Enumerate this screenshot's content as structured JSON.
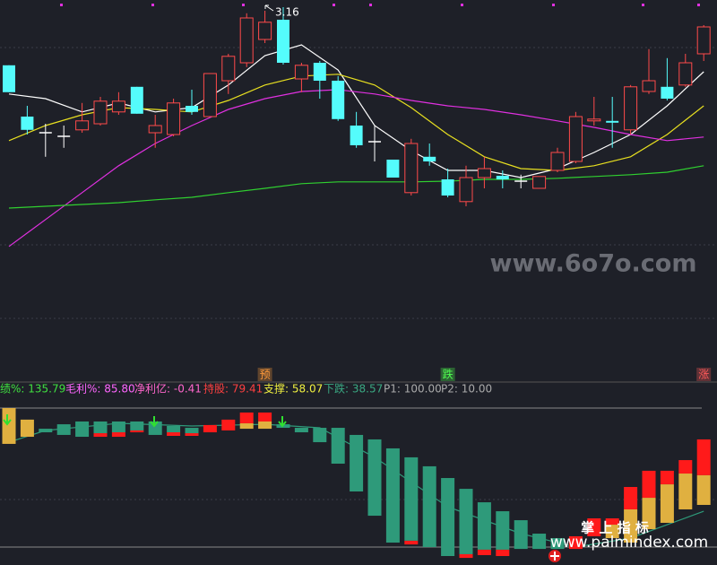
{
  "chart_data": [
    {
      "type": "candlestick",
      "ylim": [
        2.13,
        3.18
      ],
      "up_color": "#ff4a4a",
      "down_color": "#54fcfc",
      "flat_color": "#ffffff",
      "ohlc": [
        [
          2.998,
          2.998,
          2.923,
          2.923
        ],
        [
          2.855,
          2.885,
          2.805,
          2.818
        ],
        [
          2.81,
          2.835,
          2.743,
          2.81
        ],
        [
          2.8,
          2.83,
          2.768,
          2.8
        ],
        [
          2.818,
          2.893,
          2.81,
          2.843
        ],
        [
          2.835,
          2.91,
          2.83,
          2.898
        ],
        [
          2.868,
          2.923,
          2.86,
          2.898
        ],
        [
          2.938,
          2.938,
          2.863,
          2.863
        ],
        [
          2.81,
          2.86,
          2.768,
          2.83
        ],
        [
          2.805,
          2.905,
          2.8,
          2.893
        ],
        [
          2.885,
          2.93,
          2.86,
          2.868
        ],
        [
          2.855,
          2.975,
          2.855,
          2.975
        ],
        [
          2.955,
          3.03,
          2.918,
          3.023
        ],
        [
          3.005,
          3.143,
          2.993,
          3.13
        ],
        [
          3.07,
          3.15,
          3.06,
          3.118
        ],
        [
          3.125,
          3.16,
          3.0,
          3.005
        ],
        [
          2.96,
          3.005,
          2.923,
          2.998
        ],
        [
          3.005,
          3.01,
          2.905,
          2.955
        ],
        [
          2.955,
          2.968,
          2.843,
          2.848
        ],
        [
          2.83,
          2.868,
          2.768,
          2.775
        ],
        [
          2.785,
          2.83,
          2.73,
          2.785
        ],
        [
          2.735,
          2.735,
          2.685,
          2.685
        ],
        [
          2.643,
          2.793,
          2.635,
          2.78
        ],
        [
          2.743,
          2.78,
          2.718,
          2.73
        ],
        [
          2.68,
          2.71,
          2.63,
          2.635
        ],
        [
          2.618,
          2.718,
          2.605,
          2.685
        ],
        [
          2.685,
          2.743,
          2.655,
          2.71
        ],
        [
          2.69,
          2.705,
          2.655,
          2.68
        ],
        [
          2.675,
          2.693,
          2.655,
          2.675
        ],
        [
          2.655,
          2.688,
          2.655,
          2.688
        ],
        [
          2.705,
          2.768,
          2.7,
          2.755
        ],
        [
          2.73,
          2.868,
          2.725,
          2.855
        ],
        [
          2.843,
          2.91,
          2.83,
          2.848
        ],
        [
          2.843,
          2.91,
          2.768,
          2.838
        ],
        [
          2.818,
          2.943,
          2.805,
          2.938
        ],
        [
          2.925,
          3.043,
          2.918,
          2.955
        ],
        [
          2.938,
          3.018,
          2.9,
          2.905
        ],
        [
          2.943,
          3.03,
          2.938,
          3.005
        ],
        [
          3.03,
          3.11,
          3.01,
          3.105
        ]
      ],
      "lines": [
        {
          "color": "#ffffff",
          "x": [
            0,
            2,
            4,
            6,
            8,
            10,
            12,
            14,
            16,
            18,
            20,
            22,
            24,
            26,
            28,
            30,
            32,
            34,
            36,
            38
          ],
          "values": [
            2.918,
            2.905,
            2.868,
            2.893,
            2.868,
            2.88,
            2.943,
            3.025,
            3.055,
            2.985,
            2.83,
            2.76,
            2.705,
            2.705,
            2.685,
            2.71,
            2.755,
            2.805,
            2.885,
            2.98
          ]
        },
        {
          "color": "#e8e020",
          "x": [
            0,
            2,
            4,
            6,
            8,
            10,
            12,
            14,
            16,
            18,
            20,
            22,
            24,
            26,
            28,
            30,
            32,
            34,
            36,
            38
          ],
          "values": [
            2.788,
            2.83,
            2.86,
            2.88,
            2.875,
            2.868,
            2.9,
            2.943,
            2.968,
            2.973,
            2.943,
            2.88,
            2.805,
            2.743,
            2.71,
            2.705,
            2.718,
            2.743,
            2.805,
            2.885
          ]
        },
        {
          "color": "#e030e0",
          "x": [
            0,
            2,
            4,
            6,
            8,
            10,
            12,
            14,
            16,
            18,
            20,
            22,
            24,
            26,
            28,
            30,
            32,
            34,
            36,
            38
          ],
          "values": [
            2.493,
            2.568,
            2.643,
            2.718,
            2.78,
            2.83,
            2.875,
            2.905,
            2.925,
            2.93,
            2.918,
            2.9,
            2.885,
            2.875,
            2.86,
            2.843,
            2.825,
            2.805,
            2.788,
            2.798
          ]
        },
        {
          "color": "#30d030",
          "x": [
            0,
            2,
            4,
            6,
            8,
            10,
            12,
            14,
            16,
            18,
            20,
            22,
            24,
            26,
            28,
            30,
            32,
            34,
            36,
            38
          ],
          "values": [
            2.6,
            2.605,
            2.61,
            2.615,
            2.623,
            2.63,
            2.643,
            2.655,
            2.668,
            2.673,
            2.673,
            2.673,
            2.675,
            2.68,
            2.68,
            2.683,
            2.688,
            2.693,
            2.7,
            2.718
          ]
        }
      ],
      "annotation": "3.16",
      "signals": [
        {
          "text": "预",
          "index": 14,
          "color": "#ff9a3a"
        },
        {
          "text": "跌",
          "index": 24,
          "color": "#50ff50"
        },
        {
          "text": "涨",
          "index": 38,
          "color": "#ff5a5a"
        }
      ]
    },
    {
      "type": "bar",
      "ylim": [
        -1.6,
        108.7
      ],
      "legend": [
        {
          "text": "绩%: 135.79",
          "color": "#40e040"
        },
        {
          "text": "毛利%: 85.80",
          "color": "#ff66ff"
        },
        {
          "text": "净利亿: -0.41",
          "color": "#ff66cc"
        },
        {
          "text": "持股: 79.41",
          "color": "#ff4040"
        },
        {
          "text": "支撑: 58.07",
          "color": "#f0f040"
        },
        {
          "text": "下跌: 38.57",
          "color": "#3aa882"
        },
        {
          "text": "P1: 100.00",
          "color": "#aaaaaa"
        },
        {
          "text": "P2: 10.00",
          "color": "#aaaaaa"
        }
      ],
      "series": [
        {
          "color": "#2e9a7a",
          "high": [
            null,
            null,
            86.6,
            89.5,
            91.3,
            91.3,
            91.3,
            91.3,
            91.3,
            88.4,
            87.2,
            null,
            null,
            null,
            null,
            89.5,
            87.2,
            87.2,
            87.2,
            82.6,
            79.7,
            73.9,
            68.1,
            62.3,
            54.7,
            47.7,
            39.0,
            33.2,
            27.4,
            18.7,
            15.8,
            null,
            null,
            null,
            null,
            null,
            null,
            null,
            null
          ],
          "low": [
            null,
            null,
            84.3,
            82.6,
            81.4,
            83.7,
            84.3,
            85.5,
            82.6,
            84.3,
            83.7,
            null,
            null,
            null,
            null,
            87.2,
            84.3,
            77.9,
            64.0,
            46.0,
            30.3,
            12.9,
            14.1,
            10.0,
            4.2,
            5.4,
            8.3,
            8.3,
            8.8,
            8.8,
            8.8,
            null,
            null,
            null,
            null,
            null,
            null,
            null,
            null
          ]
        },
        {
          "color": "#ff1a1a",
          "high": [
            null,
            null,
            null,
            null,
            null,
            83.7,
            84.3,
            85.5,
            null,
            84.3,
            83.7,
            89.0,
            92.5,
            97.1,
            97.1,
            null,
            null,
            null,
            null,
            null,
            null,
            null,
            14.1,
            null,
            null,
            5.4,
            8.3,
            8.3,
            null,
            null,
            null,
            17.0,
            28.6,
            28.6,
            48.9,
            59.4,
            59.4,
            66.3,
            79.7
          ],
          "low": [
            null,
            null,
            null,
            null,
            null,
            81.4,
            81.4,
            84.3,
            null,
            82.0,
            82.0,
            84.3,
            85.5,
            90.1,
            91.3,
            null,
            null,
            null,
            null,
            null,
            null,
            null,
            11.7,
            null,
            null,
            3.0,
            4.8,
            4.2,
            null,
            null,
            null,
            8.8,
            17.0,
            24.5,
            34.4,
            41.9,
            50.6,
            57.6,
            56.5
          ]
        },
        {
          "color": "#e0b040",
          "high": [
            100,
            92.5,
            null,
            null,
            null,
            null,
            null,
            null,
            null,
            null,
            null,
            null,
            null,
            90.1,
            91.3,
            null,
            null,
            null,
            null,
            null,
            null,
            null,
            null,
            null,
            null,
            null,
            null,
            null,
            null,
            null,
            null,
            null,
            null,
            24.5,
            34.4,
            41.9,
            50.6,
            57.6,
            56.5
          ],
          "low": [
            76.8,
            81.4,
            null,
            null,
            null,
            null,
            null,
            null,
            null,
            null,
            null,
            null,
            null,
            86.6,
            86.6,
            null,
            null,
            null,
            null,
            null,
            null,
            null,
            null,
            null,
            null,
            null,
            null,
            null,
            null,
            null,
            null,
            null,
            null,
            15.8,
            12.9,
            21.6,
            25.7,
            34.4,
            37.3
          ]
        }
      ],
      "lines": [
        {
          "color": "#2e9a7a",
          "x": [
            0,
            2,
            6,
            10,
            14,
            17,
            20,
            24,
            28,
            31,
            34,
            38
          ],
          "values": [
            77.9,
            85.5,
            90.1,
            88.4,
            89.5,
            87.2,
            68.1,
            36.1,
            18.7,
            10.0,
            15.8,
            33.2
          ]
        }
      ]
    }
  ],
  "watermarks": [
    "www.6o7o.com",
    "掌 上 指 标",
    "www.palmindex.com"
  ]
}
